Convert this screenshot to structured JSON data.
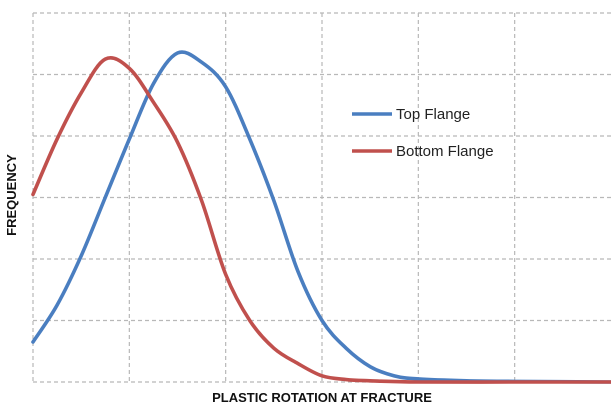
{
  "chart_data": {
    "type": "line",
    "title": "",
    "xlabel": "PLASTIC ROTATION AT FRACTURE",
    "ylabel": "FREQUENCY",
    "xlim": [
      0,
      6
    ],
    "ylim": [
      0,
      6
    ],
    "grid": true,
    "x_tick_labels": false,
    "y_tick_labels": false,
    "legend_position": "right",
    "series": [
      {
        "name": "Top Flange",
        "color": "#4a7ec0",
        "x": [
          0,
          0.25,
          0.5,
          0.75,
          1.0,
          1.25,
          1.5,
          1.75,
          2.0,
          2.25,
          2.5,
          2.75,
          3.0,
          3.25,
          3.5,
          3.75,
          4.0,
          4.5,
          5.0,
          6.0
        ],
        "y": [
          0.65,
          1.25,
          2.05,
          3.0,
          3.95,
          4.85,
          5.35,
          5.2,
          4.8,
          3.95,
          2.95,
          1.8,
          1.0,
          0.55,
          0.25,
          0.1,
          0.05,
          0.02,
          0.01,
          0.0
        ]
      },
      {
        "name": "Bottom Flange",
        "color": "#c0504d",
        "x": [
          0,
          0.25,
          0.5,
          0.75,
          1.0,
          1.25,
          1.5,
          1.75,
          2.0,
          2.25,
          2.5,
          2.75,
          3.0,
          3.25,
          3.5,
          4.0,
          5.0,
          6.0
        ],
        "y": [
          3.05,
          3.95,
          4.7,
          5.25,
          5.1,
          4.55,
          3.9,
          2.95,
          1.75,
          1.0,
          0.55,
          0.3,
          0.1,
          0.04,
          0.02,
          0.0,
          0.0,
          0.0
        ]
      }
    ]
  }
}
